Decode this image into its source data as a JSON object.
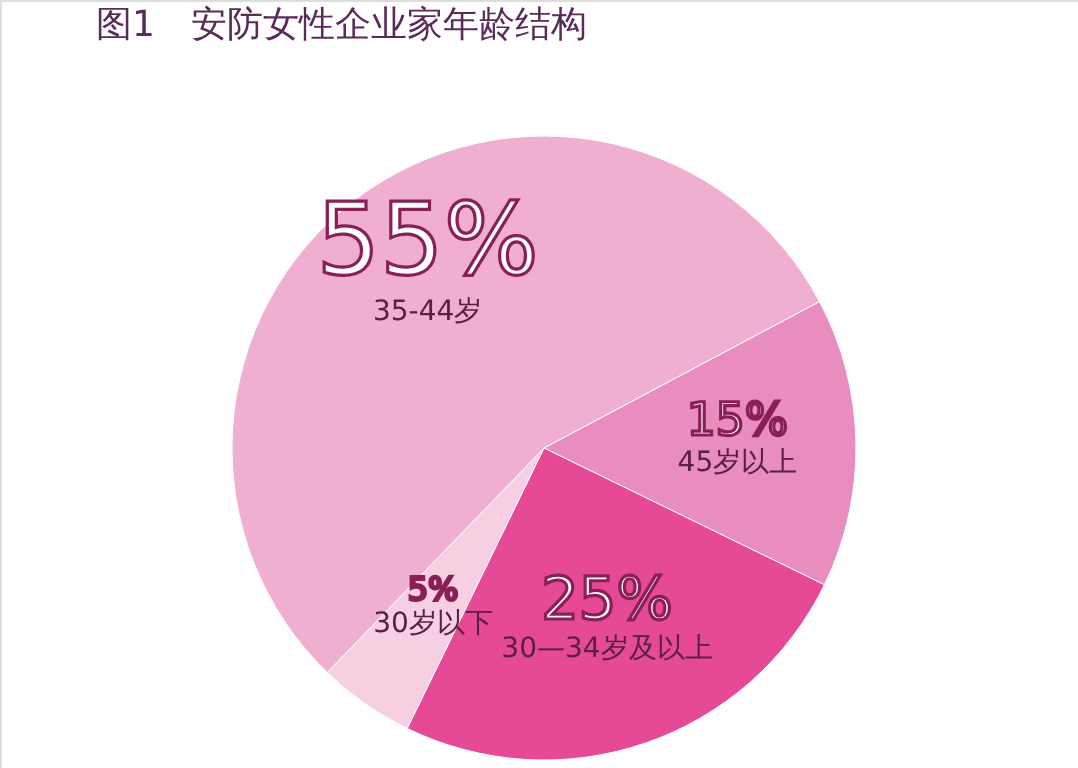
{
  "chart_data": {
    "type": "pie",
    "title": "图1　安防女性企业家年龄结构",
    "categories": [
      "45岁以上",
      "30—34岁及以上",
      "30岁以下",
      "35-44岁"
    ],
    "values": [
      15,
      25,
      5,
      55
    ],
    "colors": [
      "#e98cbf",
      "#e64a97",
      "#f7cfe3",
      "#f0aed0"
    ],
    "value_labels": [
      "15%",
      "25%",
      "5%",
      "55%"
    ],
    "legend": false
  }
}
